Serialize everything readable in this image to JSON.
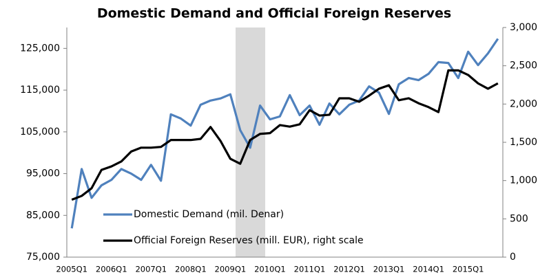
{
  "chart_data": {
    "type": "line",
    "title": "Domestic Demand and Official Foreign Reserves",
    "categories": [
      "2005Q1",
      null,
      null,
      null,
      "2006Q1",
      null,
      null,
      null,
      "2007Q1",
      null,
      null,
      null,
      "2008Q1",
      null,
      null,
      null,
      "2009Q1",
      null,
      null,
      null,
      "2010Q1",
      null,
      null,
      null,
      "2011Q1",
      null,
      null,
      null,
      "2012Q1",
      null,
      null,
      null,
      "2013Q1",
      null,
      null,
      null,
      "2014Q1",
      null,
      null,
      null,
      "2015Q1",
      null,
      null,
      null
    ],
    "series": [
      {
        "name": "Domestic Demand (mil. Denar)",
        "color": "#4f81bd",
        "values": [
          81900,
          96100,
          89200,
          92200,
          93500,
          96100,
          95000,
          93500,
          97100,
          93300,
          109200,
          108200,
          106500,
          111500,
          112500,
          113000,
          114000,
          105400,
          101200,
          111300,
          108000,
          108700,
          113800,
          109000,
          111300,
          106700,
          111800,
          109200,
          111500,
          112500,
          115900,
          114400,
          109300,
          116400,
          117900,
          117400,
          118900,
          121700,
          121500,
          117900,
          124200,
          121000,
          123800,
          127300
        ]
      },
      {
        "name": "Official Foreign Reserves (mill. EUR), right scale",
        "color": "#000000",
        "axis": "y2",
        "values": [
          750,
          800,
          900,
          1140,
          1185,
          1250,
          1380,
          1430,
          1430,
          1440,
          1530,
          1530,
          1530,
          1545,
          1700,
          1520,
          1285,
          1220,
          1530,
          1610,
          1620,
          1725,
          1705,
          1735,
          1920,
          1850,
          1860,
          2075,
          2075,
          2030,
          2110,
          2200,
          2245,
          2050,
          2075,
          2010,
          1960,
          1895,
          2440,
          2440,
          2380,
          2270,
          2200,
          2270
        ]
      }
    ],
    "ylim": [
      75000,
      130000
    ],
    "yticks": [
      {
        "value": 75000,
        "label": "75,000"
      },
      {
        "value": 85000,
        "label": "85,000"
      },
      {
        "value": 95000,
        "label": "95,000"
      },
      {
        "value": 105000,
        "label": "105,000"
      },
      {
        "value": 115000,
        "label": "115,000"
      },
      {
        "value": 125000,
        "label": "125,000"
      }
    ],
    "y2lim": [
      0,
      3000
    ],
    "y2ticks": [
      0,
      500,
      {
        "value": 1000,
        "label": "1,000"
      },
      {
        "value": 1500,
        "label": "1,500"
      },
      {
        "value": 2000,
        "label": "2,000"
      },
      {
        "value": 2500,
        "label": "2,500"
      },
      {
        "value": 3000,
        "label": "3,000"
      }
    ],
    "grid": false,
    "legend": "lower left"
  }
}
